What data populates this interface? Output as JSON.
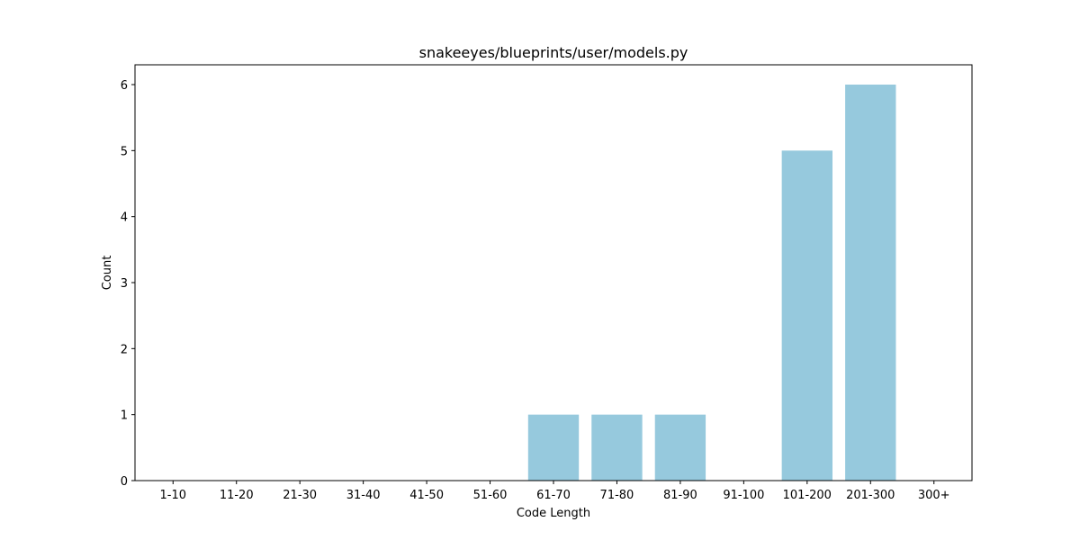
{
  "chart_data": {
    "type": "bar",
    "title": "snakeeyes/blueprints/user/models.py",
    "xlabel": "Code Length",
    "ylabel": "Count",
    "categories": [
      "1-10",
      "11-20",
      "21-30",
      "31-40",
      "41-50",
      "51-60",
      "61-70",
      "71-80",
      "81-90",
      "91-100",
      "101-200",
      "201-300",
      "300+"
    ],
    "values": [
      0,
      0,
      0,
      0,
      0,
      0,
      1,
      1,
      1,
      0,
      5,
      6,
      0
    ],
    "ylim": [
      0,
      6.3
    ],
    "yticks": [
      0,
      1,
      2,
      3,
      4,
      5,
      6
    ],
    "bar_color": "#96c9dd",
    "grid": false,
    "legend": "none"
  }
}
